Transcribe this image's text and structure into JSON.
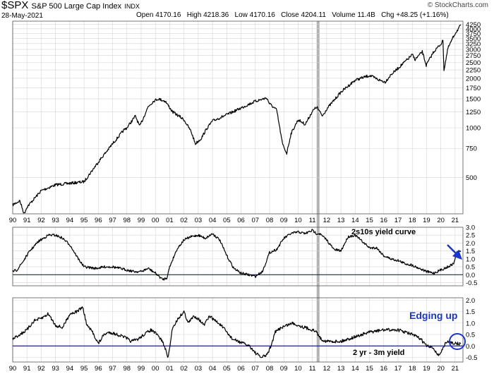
{
  "header": {
    "symbol": "$SPX",
    "name": "S&P 500 Large Cap Index",
    "exchange": "INDX",
    "date": "28-May-2021",
    "credit": "© StockCharts.com",
    "ohlc": "Open 4170.16   High 4218.36   Low 4170.16   Close 4204.11   Volume 11.4B   Chg +48.25 (+1.16%)"
  },
  "colors": {
    "line": "#000000",
    "grid": "#d4d4d4",
    "highlight": "#9a9a9a",
    "zero": "#1a237e",
    "annotation": "#1a35c8"
  },
  "chart_data": [
    {
      "type": "line",
      "panel": "price",
      "series": [
        {
          "name": "$SPX",
          "x": [
            1990,
            1990.5,
            1990.8,
            1991,
            1992,
            1993,
            1994,
            1995,
            1996,
            1997,
            1997.8,
            1998,
            1998.6,
            1998.9,
            1999.5,
            1999.9,
            2000.2,
            2000.7,
            2001.2,
            2001.7,
            2002,
            2002.5,
            2002.8,
            2003.2,
            2003.6,
            2004,
            2005,
            2006,
            2007,
            2007.8,
            2008,
            2008.5,
            2008.9,
            2009.2,
            2009.5,
            2010,
            2010.5,
            2011,
            2011.3,
            2011.7,
            2012,
            2013,
            2014,
            2015,
            2015.7,
            2016.1,
            2016.5,
            2017,
            2018,
            2018.2,
            2018.7,
            2018.98,
            2019.5,
            2020,
            2020.15,
            2020.22,
            2020.5,
            2021,
            2021.4
          ],
          "y": [
            340,
            360,
            300,
            330,
            415,
            450,
            460,
            470,
            620,
            800,
            970,
            1000,
            1180,
            1020,
            1350,
            1460,
            1500,
            1450,
            1250,
            1170,
            1120,
            950,
            800,
            860,
            990,
            1100,
            1200,
            1320,
            1450,
            1520,
            1400,
            1280,
            800,
            700,
            920,
            1120,
            1050,
            1260,
            1340,
            1180,
            1300,
            1650,
            1950,
            2080,
            1950,
            1900,
            2100,
            2300,
            2780,
            2600,
            2900,
            2400,
            2900,
            3230,
            3380,
            2240,
            3050,
            3750,
            4204
          ]
        }
      ],
      "ylabel": "",
      "log_scale": true,
      "ylim": [
        300,
        4450
      ],
      "y_ticks": [
        4250,
        4000,
        3750,
        3500,
        3250,
        3000,
        2750,
        2500,
        2250,
        2000,
        1750,
        1500,
        1250,
        1000,
        750,
        500
      ],
      "highlight_x": [
        2011.3,
        2011.5
      ]
    },
    {
      "type": "line",
      "panel": "2s10s",
      "series": [
        {
          "name": "2s10s yield curve",
          "x": [
            1990,
            1990.3,
            1990.7,
            1991.2,
            1991.8,
            1992.5,
            1993,
            1993.5,
            1994,
            1994.6,
            1995,
            1995.8,
            1996.5,
            1997,
            1997.5,
            1998,
            1998.5,
            1999,
            1999.5,
            2000,
            2000.5,
            2000.8,
            2001,
            2001.5,
            2002,
            2002.5,
            2003,
            2003.5,
            2004,
            2004.5,
            2005,
            2005.5,
            2006,
            2006.5,
            2007,
            2007.5,
            2008,
            2008.5,
            2009,
            2009.5,
            2010,
            2010.5,
            2011,
            2011.3,
            2011.5,
            2012,
            2012.5,
            2013,
            2013.5,
            2014,
            2014.5,
            2015,
            2015.5,
            2016,
            2016.5,
            2017,
            2017.5,
            2018,
            2018.5,
            2019,
            2019.5,
            2020,
            2020.5,
            2020.9,
            2021.1,
            2021.4
          ],
          "y": [
            0.2,
            0.3,
            0.8,
            1.5,
            2.1,
            2.5,
            2.5,
            2.3,
            1.9,
            1.0,
            0.5,
            0.4,
            0.5,
            0.5,
            0.4,
            0.3,
            0.2,
            0.2,
            0.4,
            0.1,
            -0.3,
            -0.2,
            0.5,
            1.6,
            2.2,
            2.4,
            2.5,
            2.3,
            2.6,
            2.2,
            1.2,
            0.4,
            0.1,
            0.0,
            -0.1,
            0.2,
            1.4,
            1.6,
            2.3,
            2.6,
            2.7,
            2.6,
            2.8,
            2.6,
            2.6,
            2.2,
            1.6,
            1.5,
            2.4,
            2.5,
            2.1,
            1.7,
            1.7,
            1.2,
            1.0,
            0.9,
            0.7,
            0.6,
            0.4,
            0.2,
            0.1,
            0.3,
            0.5,
            0.7,
            1.4,
            1.5
          ]
        }
      ],
      "ylim": [
        -0.7,
        3.0
      ],
      "y_ticks": [
        3.0,
        2.5,
        2.0,
        1.5,
        1.0,
        0.5,
        0.0,
        -0.5
      ],
      "zero_line": 0,
      "annotations": [
        "2s10s yield curve"
      ]
    },
    {
      "type": "line",
      "panel": "2yr-3m",
      "series": [
        {
          "name": "2 yr - 3m yield",
          "x": [
            1990,
            1990.5,
            1991,
            1991.5,
            1992,
            1992.5,
            1993,
            1993.5,
            1994,
            1994.5,
            1994.9,
            1995.2,
            1995.6,
            1996,
            1996.4,
            1996.8,
            1997.3,
            1997.8,
            1998.3,
            1998.8,
            1999.2,
            1999.7,
            2000.1,
            2000.5,
            2000.9,
            2001.2,
            2001.6,
            2002,
            2002.3,
            2002.7,
            2003,
            2003.4,
            2003.8,
            2004.2,
            2004.6,
            2005,
            2005.4,
            2005.8,
            2006.2,
            2006.6,
            2007,
            2007.4,
            2007.8,
            2008.1,
            2008.4,
            2008.8,
            2009.2,
            2009.6,
            2010,
            2010.5,
            2011,
            2011.3,
            2011.6,
            2012,
            2013,
            2014,
            2015,
            2016,
            2017,
            2018,
            2018.6,
            2019,
            2019.5,
            2019.8,
            2020,
            2020.3,
            2020.6,
            2021,
            2021.4
          ],
          "y": [
            0.3,
            0.5,
            0.7,
            1.1,
            1.2,
            1.4,
            0.9,
            0.8,
            1.4,
            1.5,
            1.7,
            0.9,
            0.6,
            0.1,
            0.5,
            0.6,
            0.5,
            0.4,
            0.2,
            0.3,
            0.5,
            0.7,
            0.5,
            0.2,
            -0.5,
            0.8,
            1.2,
            1.5,
            1.0,
            1.3,
            1.2,
            0.9,
            1.3,
            1.1,
            0.9,
            0.6,
            0.3,
            0.2,
            0.1,
            0.0,
            -0.3,
            -0.5,
            -0.4,
            0.0,
            0.6,
            0.8,
            0.9,
            1.0,
            0.9,
            0.8,
            0.7,
            0.6,
            0.3,
            0.2,
            0.2,
            0.4,
            0.6,
            0.7,
            0.7,
            0.5,
            0.3,
            0.0,
            -0.1,
            -0.4,
            -0.3,
            0.1,
            0.2,
            0.1,
            0.1
          ]
        }
      ],
      "ylim": [
        -0.7,
        2.1
      ],
      "y_ticks": [
        2.0,
        1.5,
        1.0,
        0.5,
        0.0,
        -0.5
      ],
      "zero_line": 0,
      "annotations": [
        "Edging up",
        "2 yr - 3m yield"
      ]
    }
  ],
  "x_ticks": [
    "90",
    "91",
    "92",
    "93",
    "94",
    "95",
    "96",
    "97",
    "98",
    "99",
    "00",
    "01",
    "02",
    "03",
    "04",
    "05",
    "06",
    "07",
    "08",
    "09",
    "10",
    "11",
    "12",
    "13",
    "14",
    "15",
    "16",
    "17",
    "18",
    "19",
    "20",
    "21"
  ]
}
